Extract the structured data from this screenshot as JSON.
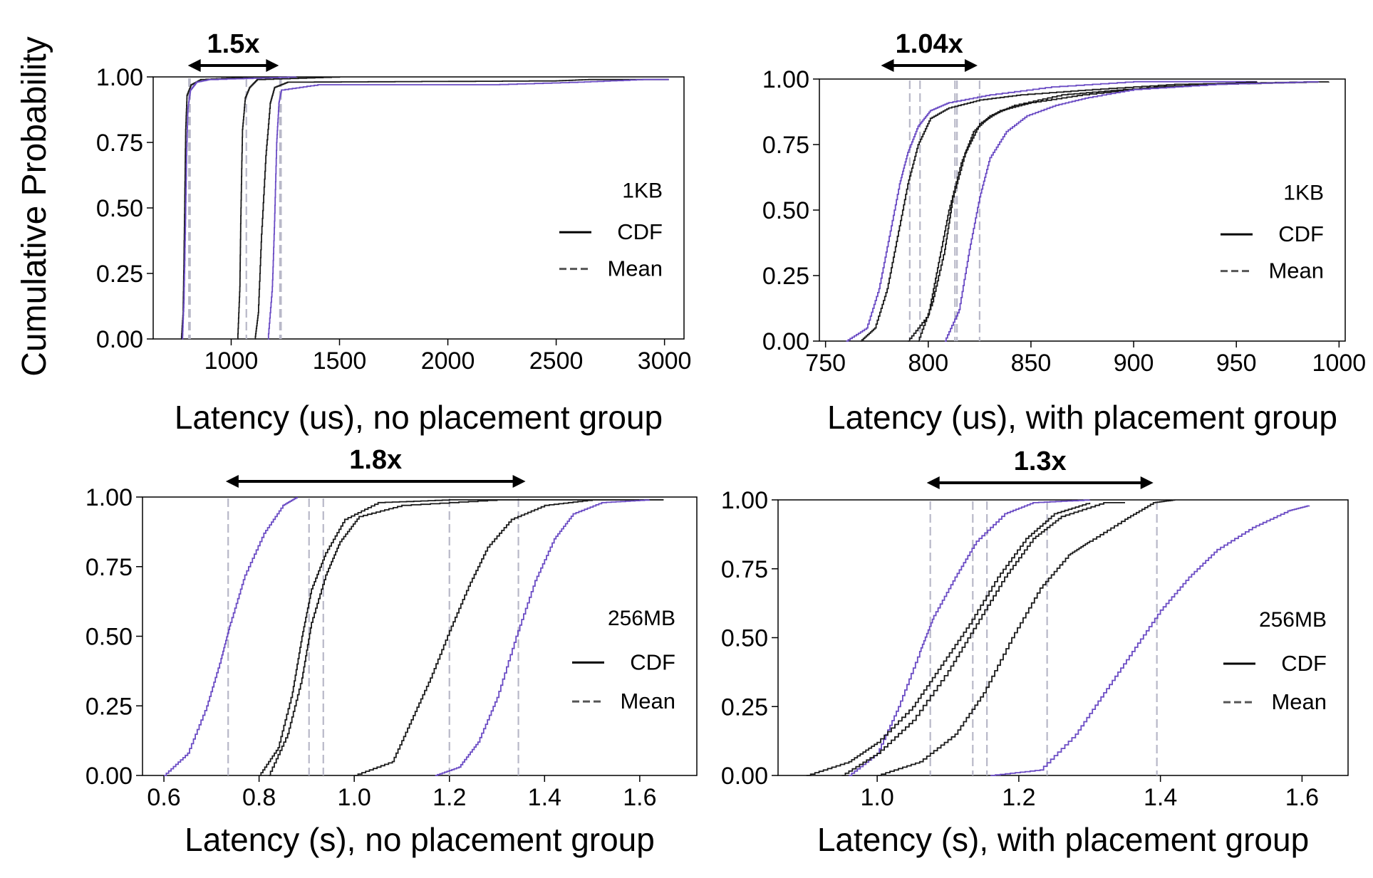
{
  "figure": {
    "ylabel": "Cumulative Probability"
  },
  "colors": {
    "black": "#1a1a1a",
    "purple": "#6a4bc4",
    "mean": "#b8b8c8"
  },
  "chart_data": [
    {
      "type": "line",
      "id": "tl",
      "xlabel": "Latency (us), no placement group",
      "size_label": "1KB",
      "ratio_label": "1.5x",
      "legend": [
        "CDF",
        "Mean"
      ],
      "xlim": [
        640,
        3090
      ],
      "ylim": [
        0,
        1
      ],
      "xticks": [
        1000,
        1500,
        2000,
        2500,
        3000
      ],
      "yticks": [
        "0.00",
        "0.25",
        "0.50",
        "0.75",
        "1.00"
      ],
      "ratio_span": [
        800,
        1220
      ],
      "series": [
        {
          "color": "black",
          "mean": 805,
          "points": [
            [
              770,
              0
            ],
            [
              778,
              0.1
            ],
            [
              782,
              0.3
            ],
            [
              786,
              0.55
            ],
            [
              790,
              0.8
            ],
            [
              796,
              0.93
            ],
            [
              815,
              0.97
            ],
            [
              860,
              0.99
            ],
            [
              1100,
              1.0
            ]
          ]
        },
        {
          "color": "purple",
          "mean": 810,
          "points": [
            [
              775,
              0
            ],
            [
              782,
              0.15
            ],
            [
              788,
              0.4
            ],
            [
              794,
              0.7
            ],
            [
              800,
              0.88
            ],
            [
              812,
              0.95
            ],
            [
              840,
              0.98
            ],
            [
              900,
              0.99
            ],
            [
              1300,
              1.0
            ]
          ]
        },
        {
          "color": "black",
          "mean": 1070,
          "points": [
            [
              1030,
              0
            ],
            [
              1040,
              0.2
            ],
            [
              1045,
              0.5
            ],
            [
              1052,
              0.8
            ],
            [
              1065,
              0.92
            ],
            [
              1085,
              0.96
            ],
            [
              1120,
              0.99
            ],
            [
              1500,
              1.0
            ]
          ]
        },
        {
          "color": "black",
          "mean": 1225,
          "points": [
            [
              1110,
              0
            ],
            [
              1125,
              0.1
            ],
            [
              1140,
              0.4
            ],
            [
              1160,
              0.7
            ],
            [
              1180,
              0.9
            ],
            [
              1200,
              0.96
            ],
            [
              1260,
              0.98
            ],
            [
              2500,
              0.985
            ],
            [
              2650,
              0.99
            ],
            [
              3020,
              0.99
            ]
          ]
        },
        {
          "color": "purple",
          "mean": 1230,
          "points": [
            [
              1170,
              0
            ],
            [
              1190,
              0.2
            ],
            [
              1200,
              0.45
            ],
            [
              1210,
              0.75
            ],
            [
              1220,
              0.9
            ],
            [
              1232,
              0.95
            ],
            [
              1400,
              0.97
            ],
            [
              2200,
              0.97
            ],
            [
              2600,
              0.98
            ],
            [
              2900,
              0.99
            ],
            [
              3020,
              0.99
            ]
          ]
        }
      ]
    },
    {
      "type": "line",
      "id": "tr",
      "xlabel": "Latency (us), with placement group",
      "size_label": "1KB",
      "ratio_label": "1.04x",
      "legend": [
        "CDF",
        "Mean"
      ],
      "xlim": [
        747,
        1003
      ],
      "ylim": [
        0,
        1
      ],
      "xticks": [
        750,
        800,
        850,
        900,
        950,
        1000
      ],
      "yticks": [
        "0.00",
        "0.25",
        "0.50",
        "0.75",
        "1.00"
      ],
      "ratio_span": [
        777,
        824
      ],
      "series": [
        {
          "color": "purple",
          "mean": 791,
          "points": [
            [
              760,
              0
            ],
            [
              770,
              0.05
            ],
            [
              776,
              0.2
            ],
            [
              781,
              0.4
            ],
            [
              786,
              0.6
            ],
            [
              790,
              0.72
            ],
            [
              795,
              0.82
            ],
            [
              801,
              0.88
            ],
            [
              810,
              0.91
            ],
            [
              830,
              0.94
            ],
            [
              860,
              0.97
            ],
            [
              900,
              0.99
            ],
            [
              960,
              0.99
            ]
          ]
        },
        {
          "color": "black",
          "mean": 796,
          "points": [
            [
              767,
              0
            ],
            [
              774,
              0.05
            ],
            [
              780,
              0.2
            ],
            [
              785,
              0.4
            ],
            [
              790,
              0.6
            ],
            [
              795,
              0.75
            ],
            [
              801,
              0.85
            ],
            [
              810,
              0.89
            ],
            [
              825,
              0.92
            ],
            [
              845,
              0.94
            ],
            [
              880,
              0.96
            ],
            [
              920,
              0.98
            ],
            [
              990,
              0.99
            ]
          ]
        },
        {
          "color": "black",
          "mean": 813,
          "points": [
            [
              790,
              0
            ],
            [
              800,
              0.1
            ],
            [
              805,
              0.3
            ],
            [
              810,
              0.5
            ],
            [
              816,
              0.68
            ],
            [
              822,
              0.8
            ],
            [
              830,
              0.86
            ],
            [
              842,
              0.9
            ],
            [
              865,
              0.94
            ],
            [
              895,
              0.96
            ],
            [
              940,
              0.98
            ],
            [
              995,
              0.99
            ]
          ]
        },
        {
          "color": "black",
          "mean": 814,
          "points": [
            [
              795,
              0
            ],
            [
              802,
              0.15
            ],
            [
              808,
              0.35
            ],
            [
              812,
              0.55
            ],
            [
              818,
              0.72
            ],
            [
              825,
              0.83
            ],
            [
              835,
              0.88
            ],
            [
              850,
              0.91
            ],
            [
              875,
              0.94
            ],
            [
              910,
              0.97
            ],
            [
              960,
              0.99
            ]
          ]
        },
        {
          "color": "purple",
          "mean": 825,
          "points": [
            [
              808,
              0
            ],
            [
              815,
              0.12
            ],
            [
              820,
              0.35
            ],
            [
              825,
              0.55
            ],
            [
              830,
              0.7
            ],
            [
              838,
              0.8
            ],
            [
              848,
              0.86
            ],
            [
              862,
              0.9
            ],
            [
              878,
              0.93
            ],
            [
              900,
              0.96
            ],
            [
              940,
              0.98
            ],
            [
              990,
              0.99
            ]
          ]
        }
      ]
    },
    {
      "type": "line",
      "id": "bl",
      "xlabel": "Latency (s), no placement group",
      "size_label": "256MB",
      "ratio_label": "1.8x",
      "legend": [
        "CDF",
        "Mean"
      ],
      "xlim": [
        0.555,
        1.72
      ],
      "ylim": [
        0,
        1
      ],
      "xticks": [
        "0.6",
        "0.8",
        "1.0",
        "1.2",
        "1.4",
        "1.6"
      ],
      "yticks": [
        "0.00",
        "0.25",
        "0.50",
        "0.75",
        "1.00"
      ],
      "ratio_span": [
        0.73,
        1.36
      ],
      "series": [
        {
          "color": "purple",
          "mean": 0.735,
          "points": [
            [
              0.6,
              0
            ],
            [
              0.65,
              0.08
            ],
            [
              0.69,
              0.25
            ],
            [
              0.72,
              0.42
            ],
            [
              0.74,
              0.55
            ],
            [
              0.77,
              0.72
            ],
            [
              0.81,
              0.87
            ],
            [
              0.85,
              0.97
            ],
            [
              0.88,
              1.0
            ]
          ]
        },
        {
          "color": "black",
          "mean": 0.905,
          "points": [
            [
              0.8,
              0
            ],
            [
              0.84,
              0.1
            ],
            [
              0.87,
              0.3
            ],
            [
              0.89,
              0.5
            ],
            [
              0.91,
              0.67
            ],
            [
              0.94,
              0.8
            ],
            [
              0.98,
              0.92
            ],
            [
              1.05,
              0.98
            ],
            [
              1.2,
              0.99
            ],
            [
              1.65,
              0.99
            ]
          ]
        },
        {
          "color": "black",
          "mean": 0.935,
          "points": [
            [
              0.82,
              0
            ],
            [
              0.86,
              0.15
            ],
            [
              0.89,
              0.35
            ],
            [
              0.91,
              0.55
            ],
            [
              0.94,
              0.72
            ],
            [
              0.97,
              0.84
            ],
            [
              1.01,
              0.93
            ],
            [
              1.1,
              0.97
            ],
            [
              1.3,
              0.99
            ],
            [
              1.55,
              0.99
            ]
          ]
        },
        {
          "color": "black",
          "mean": 1.2,
          "points": [
            [
              1.0,
              0
            ],
            [
              1.08,
              0.05
            ],
            [
              1.12,
              0.2
            ],
            [
              1.16,
              0.35
            ],
            [
              1.2,
              0.52
            ],
            [
              1.24,
              0.68
            ],
            [
              1.28,
              0.82
            ],
            [
              1.33,
              0.92
            ],
            [
              1.4,
              0.97
            ],
            [
              1.5,
              0.99
            ],
            [
              1.65,
              0.99
            ]
          ]
        },
        {
          "color": "purple",
          "mean": 1.345,
          "points": [
            [
              1.17,
              0
            ],
            [
              1.22,
              0.03
            ],
            [
              1.26,
              0.12
            ],
            [
              1.3,
              0.28
            ],
            [
              1.34,
              0.5
            ],
            [
              1.38,
              0.7
            ],
            [
              1.42,
              0.85
            ],
            [
              1.46,
              0.94
            ],
            [
              1.52,
              0.98
            ],
            [
              1.62,
              0.99
            ]
          ]
        }
      ]
    },
    {
      "type": "line",
      "id": "br",
      "xlabel": "Latency (s), with placement group",
      "size_label": "256MB",
      "ratio_label": "1.3x",
      "legend": [
        "CDF",
        "Mean"
      ],
      "xlim": [
        0.86,
        1.665
      ],
      "ylim": [
        0,
        1
      ],
      "xticks": [
        "1.0",
        "1.2",
        "1.4",
        "1.6"
      ],
      "yticks": [
        "0.00",
        "0.25",
        "0.50",
        "0.75",
        "1.00"
      ],
      "ratio_span": [
        1.07,
        1.39
      ],
      "series": [
        {
          "color": "purple",
          "mean": 1.075,
          "points": [
            [
              0.96,
              0
            ],
            [
              1.0,
              0.08
            ],
            [
              1.03,
              0.25
            ],
            [
              1.06,
              0.45
            ],
            [
              1.08,
              0.58
            ],
            [
              1.11,
              0.72
            ],
            [
              1.14,
              0.85
            ],
            [
              1.18,
              0.95
            ],
            [
              1.22,
              0.99
            ],
            [
              1.3,
              1.0
            ]
          ]
        },
        {
          "color": "black",
          "mean": 1.135,
          "points": [
            [
              0.9,
              0
            ],
            [
              0.96,
              0.05
            ],
            [
              1.0,
              0.12
            ],
            [
              1.05,
              0.25
            ],
            [
              1.09,
              0.4
            ],
            [
              1.13,
              0.55
            ],
            [
              1.17,
              0.72
            ],
            [
              1.21,
              0.86
            ],
            [
              1.25,
              0.95
            ],
            [
              1.3,
              0.99
            ]
          ]
        },
        {
          "color": "black",
          "mean": 1.155,
          "points": [
            [
              0.95,
              0
            ],
            [
              1.0,
              0.08
            ],
            [
              1.05,
              0.2
            ],
            [
              1.1,
              0.38
            ],
            [
              1.14,
              0.55
            ],
            [
              1.18,
              0.72
            ],
            [
              1.22,
              0.86
            ],
            [
              1.26,
              0.94
            ],
            [
              1.32,
              0.99
            ],
            [
              1.35,
              0.99
            ]
          ]
        },
        {
          "color": "black",
          "mean": 1.24,
          "points": [
            [
              1.0,
              0
            ],
            [
              1.06,
              0.05
            ],
            [
              1.11,
              0.15
            ],
            [
              1.15,
              0.3
            ],
            [
              1.19,
              0.5
            ],
            [
              1.23,
              0.68
            ],
            [
              1.27,
              0.8
            ],
            [
              1.3,
              0.85
            ],
            [
              1.35,
              0.93
            ],
            [
              1.39,
              0.99
            ],
            [
              1.42,
              1.0
            ]
          ]
        },
        {
          "color": "purple",
          "mean": 1.395,
          "points": [
            [
              1.16,
              0
            ],
            [
              1.23,
              0.02
            ],
            [
              1.28,
              0.15
            ],
            [
              1.32,
              0.3
            ],
            [
              1.36,
              0.45
            ],
            [
              1.4,
              0.6
            ],
            [
              1.44,
              0.72
            ],
            [
              1.48,
              0.82
            ],
            [
              1.53,
              0.9
            ],
            [
              1.58,
              0.96
            ],
            [
              1.61,
              0.98
            ]
          ]
        }
      ]
    }
  ]
}
